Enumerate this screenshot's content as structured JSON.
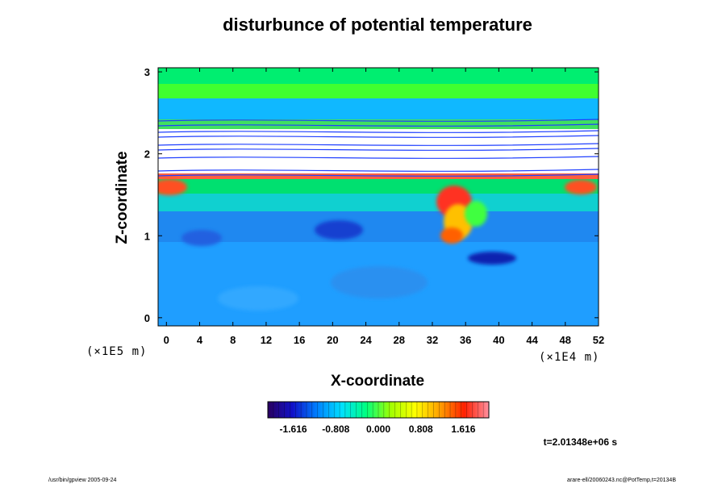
{
  "chart_data": {
    "type": "heatmap",
    "title": "disturbunce of potential temperature",
    "xlabel": "X-coordinate",
    "ylabel": "Z-coordinate",
    "x_unit": "(×1E4 m)",
    "y_unit": "(×1E5 m)",
    "xlim": [
      -1,
      52
    ],
    "ylim": [
      -0.1,
      3.05
    ],
    "x_ticks": [
      "0",
      "4",
      "8",
      "12",
      "16",
      "20",
      "24",
      "28",
      "32",
      "36",
      "40",
      "44",
      "48",
      "52"
    ],
    "y_ticks": [
      "0",
      "1",
      "2",
      "3"
    ],
    "colorbar": {
      "ticks": [
        "-1.616",
        "-0.808",
        "0.000",
        "0.808",
        "1.616"
      ],
      "range": [
        -2.1,
        2.1
      ],
      "colormap": [
        "#2a0060",
        "#1010c8",
        "#0080ff",
        "#00e0ff",
        "#00ff80",
        "#a0ff00",
        "#ffff00",
        "#ffa000",
        "#ff2000",
        "#ff90a0"
      ]
    },
    "time_label": "t=2.01348e+06 s"
  },
  "footer": {
    "left": "/usr/bin/gpview 2005-09-24",
    "right": "arare-ell/20060243.nc@PotTemp,t=20134B"
  }
}
